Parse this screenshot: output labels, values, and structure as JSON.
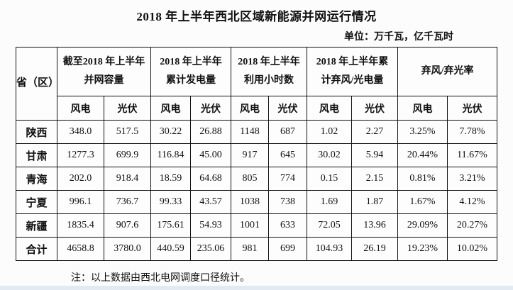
{
  "page": {
    "title": "2018 年上半年西北区域新能源并网运行情况",
    "unit_label": "单位：万千瓦，亿千瓦时",
    "footnote": "注：以上数据由西北电网调度口径统计。"
  },
  "table": {
    "corner_header": "省（区）",
    "column_groups": [
      "截至2018 年上半年\n并网容量",
      "2018 年上半年\n累计发电量",
      "2018 年上半年\n利用小时数",
      "2018 年上半年累\n计弃风/光电量",
      "弃风/弃光率"
    ],
    "subheaders": {
      "wind": "风电",
      "pv": "光伏"
    },
    "rows": [
      {
        "province": "陕西",
        "values": [
          "348.0",
          "517.5",
          "30.22",
          "26.88",
          "1148",
          "687",
          "1.02",
          "2.27",
          "3.25%",
          "7.78%"
        ]
      },
      {
        "province": "甘肃",
        "values": [
          "1277.3",
          "699.9",
          "116.84",
          "45.00",
          "917",
          "645",
          "30.02",
          "5.94",
          "20.44%",
          "11.67%"
        ]
      },
      {
        "province": "青海",
        "values": [
          "202.0",
          "918.4",
          "18.59",
          "64.68",
          "805",
          "774",
          "0.15",
          "2.15",
          "0.81%",
          "3.21%"
        ]
      },
      {
        "province": "宁夏",
        "values": [
          "996.1",
          "736.7",
          "99.33",
          "43.57",
          "1038",
          "738",
          "1.69",
          "1.87",
          "1.67%",
          "4.12%"
        ]
      },
      {
        "province": "新疆",
        "values": [
          "1835.4",
          "907.6",
          "175.61",
          "54.93",
          "1001",
          "633",
          "72.05",
          "13.96",
          "29.09%",
          "20.27%"
        ]
      },
      {
        "province": "合计",
        "values": [
          "4658.8",
          "3780.0",
          "440.59",
          "235.06",
          "981",
          "699",
          "104.93",
          "26.19",
          "19.23%",
          "10.02%"
        ]
      }
    ]
  },
  "chart_data": {
    "type": "table",
    "title": "2018 年上半年西北区域新能源并网运行情况",
    "unit": "万千瓦，亿千瓦时",
    "columns": [
      "省（区）",
      "并网容量-风电",
      "并网容量-光伏",
      "累计发电量-风电",
      "累计发电量-光伏",
      "利用小时数-风电",
      "利用小时数-光伏",
      "累计弃风/光电量-风电",
      "累计弃风/光电量-光伏",
      "弃风率",
      "弃光率"
    ],
    "rows": [
      [
        "陕西",
        348.0,
        517.5,
        30.22,
        26.88,
        1148,
        687,
        1.02,
        2.27,
        "3.25%",
        "7.78%"
      ],
      [
        "甘肃",
        1277.3,
        699.9,
        116.84,
        45.0,
        917,
        645,
        30.02,
        5.94,
        "20.44%",
        "11.67%"
      ],
      [
        "青海",
        202.0,
        918.4,
        18.59,
        64.68,
        805,
        774,
        0.15,
        2.15,
        "0.81%",
        "3.21%"
      ],
      [
        "宁夏",
        996.1,
        736.7,
        99.33,
        43.57,
        1038,
        738,
        1.69,
        1.87,
        "1.67%",
        "4.12%"
      ],
      [
        "新疆",
        1835.4,
        907.6,
        175.61,
        54.93,
        1001,
        633,
        72.05,
        13.96,
        "29.09%",
        "20.27%"
      ],
      [
        "合计",
        4658.8,
        3780.0,
        440.59,
        235.06,
        981,
        699,
        104.93,
        26.19,
        "19.23%",
        "10.02%"
      ]
    ],
    "footnote": "注：以上数据由西北电网调度口径统计。"
  }
}
